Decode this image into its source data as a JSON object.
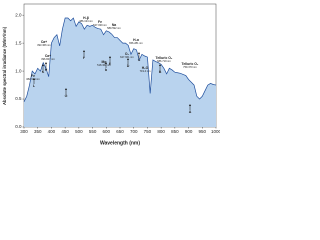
{
  "chart_data": {
    "type": "area",
    "x_label": "Wavelength (nm)",
    "y_label": "Absolute spectral irradiance (W/m²/nm)",
    "x": [
      300,
      310,
      320,
      330,
      340,
      350,
      360,
      370,
      380,
      390,
      400,
      410,
      420,
      430,
      440,
      450,
      460,
      470,
      480,
      490,
      500,
      510,
      520,
      530,
      540,
      550,
      560,
      570,
      580,
      590,
      600,
      610,
      620,
      630,
      640,
      650,
      660,
      670,
      680,
      690,
      700,
      710,
      720,
      730,
      740,
      750,
      760,
      770,
      780,
      790,
      800,
      810,
      820,
      830,
      840,
      850,
      860,
      870,
      880,
      890,
      900,
      910,
      920,
      930,
      940,
      950,
      960,
      970,
      980,
      990,
      1000
    ],
    "series": [
      {
        "color": "#1f4e9c",
        "fill": "#b9d3ee",
        "values": [
          0.45,
          0.55,
          0.75,
          1.0,
          0.95,
          1.05,
          1.0,
          1.15,
          1.05,
          0.9,
          1.5,
          1.6,
          1.65,
          1.45,
          1.75,
          1.95,
          1.95,
          1.9,
          1.95,
          1.8,
          1.88,
          1.85,
          1.75,
          1.82,
          1.8,
          1.82,
          1.78,
          1.76,
          1.75,
          1.65,
          1.72,
          1.7,
          1.66,
          1.6,
          1.6,
          1.55,
          1.5,
          1.5,
          1.46,
          1.3,
          1.4,
          1.38,
          1.2,
          1.3,
          1.27,
          1.25,
          0.6,
          1.2,
          1.17,
          1.15,
          1.12,
          1.05,
          0.95,
          1.05,
          1.02,
          0.98,
          0.97,
          0.96,
          0.94,
          0.92,
          0.85,
          0.8,
          0.75,
          0.55,
          0.5,
          0.55,
          0.65,
          0.75,
          0.78,
          0.76,
          0.75
        ]
      }
    ],
    "xlim": [
      300,
      1000
    ],
    "xticks": [
      300,
      350,
      400,
      450,
      500,
      550,
      600,
      650,
      700,
      750,
      800,
      850,
      900,
      950,
      1000
    ],
    "ylim": [
      0,
      2.2
    ],
    "yticks": [
      {
        "value": 0,
        "label": "0.0"
      },
      {
        "value": 0.5,
        "label": "0.5"
      },
      {
        "value": 1,
        "label": "1.0"
      },
      {
        "value": 1.5,
        "label": "1.5"
      },
      {
        "value": 2,
        "label": "2.0"
      }
    ],
    "annotations": [
      {
        "element": "Fe",
        "wavelength": "382.044 nm"
      },
      {
        "element": "Ca+",
        "wavelength": "393.366 nm"
      },
      {
        "element": "Ca+",
        "wavelength": "396.847 nm"
      },
      {
        "element": "H-β",
        "wavelength": "486.134 nm"
      },
      {
        "element": "Mg",
        "wavelength": "518.362 nm"
      },
      {
        "element": "Fe",
        "wavelength": "527.039 nm"
      },
      {
        "element": "Na",
        "wavelength": "589.592 nm"
      },
      {
        "element": "O₂",
        "wavelength": "627.661 nm"
      },
      {
        "element": "H-α",
        "wavelength": "656.281 nm"
      },
      {
        "element": "H₂O",
        "wavelength": "719.4 nm"
      },
      {
        "element": "Telluric O₂",
        "wavelength": "686.719 nm"
      },
      {
        "element": "Telluric O₂",
        "wavelength": "759.370 nm"
      }
    ],
    "letters": [
      "L",
      "K",
      "H",
      "G",
      "F",
      "b",
      "E",
      "D",
      "C",
      "B",
      "A"
    ]
  }
}
